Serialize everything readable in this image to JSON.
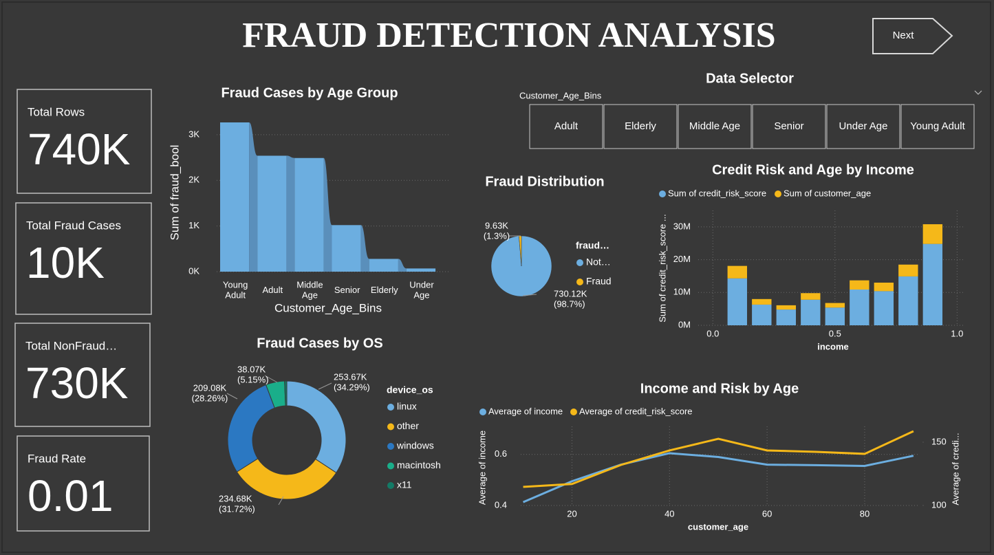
{
  "header": {
    "title": "FRAUD DETECTION ANALYSIS",
    "next_button": "Next"
  },
  "kpis": [
    {
      "label": "Total Rows",
      "value": "740K"
    },
    {
      "label": "Total Fraud Cases",
      "value": "10K"
    },
    {
      "label": "Total NonFraud…",
      "value": "730K"
    },
    {
      "label": "Fraud Rate",
      "value": "0.01"
    }
  ],
  "slicer": {
    "title": "Data Selector",
    "field": "Customer_Age_Bins",
    "options": [
      "Adult",
      "Elderly",
      "Middle Age",
      "Senior",
      "Under Age",
      "Young Adult"
    ]
  },
  "chart_data": [
    {
      "type": "step-area",
      "title": "Fraud Cases by Age Group",
      "x_label": "Customer_Age_Bins",
      "y_label": "Sum of fraud_bool",
      "categories": [
        "Young Adult",
        "Adult",
        "Middle Age",
        "Senior",
        "Elderly",
        "Under Age"
      ],
      "values": [
        3270,
        2540,
        2490,
        1020,
        280,
        70
      ],
      "color": "#6caee0",
      "ylim": [
        0,
        3300
      ],
      "yticks": [
        {
          "value": 0,
          "label": "0K"
        },
        {
          "value": 1000,
          "label": "1K"
        },
        {
          "value": 2000,
          "label": "2K"
        },
        {
          "value": 3000,
          "label": "3K"
        }
      ],
      "grid": true
    },
    {
      "type": "pie",
      "title": "Fraud Distribution",
      "legend_title": "fraud…",
      "categories": [
        "Not…",
        "Fraud"
      ],
      "values": [
        730120,
        9630
      ],
      "value_labels": [
        "730.12K (98.7%)",
        "9.63K (1.3%)"
      ],
      "colors": [
        "#6caee0",
        "#f5b819"
      ]
    },
    {
      "type": "donut",
      "title": "Fraud Cases by OS",
      "legend_title": "device_os",
      "categories": [
        "linux",
        "other",
        "windows",
        "macintosh",
        "x11"
      ],
      "values": [
        253670,
        234680,
        209080,
        38070,
        4500
      ],
      "value_labels": [
        "253.67K (34.29%)",
        "234.68K (31.72%)",
        "209.08K (28.26%)",
        "38.07K (5.15%)",
        null
      ],
      "colors": [
        "#6caee0",
        "#f5b819",
        "#2b78c2",
        "#1aae8a",
        "#137a66"
      ]
    },
    {
      "type": "stacked-bar",
      "title": "Credit Risk and Age by Income",
      "x_label": "income",
      "y_label": "Sum of credit_risk_score ...",
      "x": [
        0.1,
        0.2,
        0.3,
        0.4,
        0.5,
        0.6,
        0.7,
        0.8,
        0.9
      ],
      "series": [
        {
          "name": "Sum of credit_risk_score",
          "color": "#6caee0",
          "values": [
            14300000,
            6300000,
            4800000,
            7800000,
            5400000,
            10900000,
            10400000,
            14900000,
            24800000
          ]
        },
        {
          "name": "Sum of customer_age",
          "color": "#f5b819",
          "values": [
            3800000,
            1700000,
            1300000,
            2000000,
            1400000,
            2800000,
            2600000,
            3600000,
            6000000
          ]
        }
      ],
      "xlim": [
        -0.06,
        1.03
      ],
      "xticks": [
        {
          "value": 0,
          "label": "0.0"
        },
        0.5,
        {
          "value": 1,
          "label": "1.0"
        }
      ],
      "ylim": [
        0,
        35000000
      ],
      "yticks": [
        {
          "value": 0,
          "label": "0M"
        },
        {
          "value": 10000000,
          "label": "10M"
        },
        {
          "value": 20000000,
          "label": "20M"
        },
        {
          "value": 30000000,
          "label": "30M"
        }
      ],
      "grid": true
    },
    {
      "type": "line",
      "title": "Income and Risk by Age",
      "x_label": "customer_age",
      "y_label": "Average of income",
      "y2_label": "Average of credi...",
      "x": [
        10,
        20,
        30,
        40,
        50,
        60,
        70,
        80,
        90
      ],
      "series": [
        {
          "name": "Average of income",
          "color": "#6caee0",
          "values": [
            0.413,
            0.495,
            0.56,
            0.605,
            0.59,
            0.56,
            0.558,
            0.555,
            0.595
          ]
        },
        {
          "name": "Average of credit_risk_score",
          "color": "#f5b819",
          "axis": "y2",
          "values": [
            114.7,
            117,
            132,
            143.5,
            152.7,
            143.5,
            142.4,
            140.8,
            158.7
          ]
        }
      ],
      "xlim": [
        9.5,
        91
      ],
      "xticks": [
        20,
        40,
        60,
        80
      ],
      "ylim": [
        0.4,
        0.71
      ],
      "yticks": [
        0.4,
        0.6
      ],
      "y2lim": [
        100,
        162.5
      ],
      "y2ticks": [
        100,
        150
      ],
      "grid": true
    }
  ]
}
